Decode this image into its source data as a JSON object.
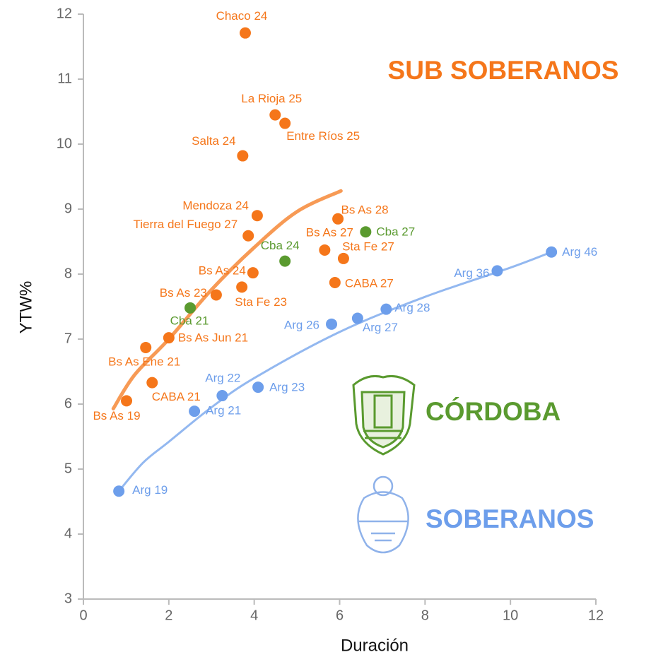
{
  "chart_data": {
    "type": "scatter",
    "xlabel": "Duración",
    "ylabel": "YTW%",
    "xlim": [
      0,
      12
    ],
    "ylim": [
      3,
      12
    ],
    "xticks": [
      0,
      2,
      4,
      6,
      8,
      10,
      12
    ],
    "yticks": [
      3,
      4,
      5,
      6,
      7,
      8,
      9,
      10,
      11,
      12
    ],
    "grid": false,
    "series": [
      {
        "name": "SUB SOBERANOS",
        "color": "#f5761a",
        "labels": [
          "Chaco 24",
          "La Rioja 25",
          "Entre Ríos 25",
          "Salta 24",
          "Mendoza 24",
          "Tierra del Fuego 27",
          "Bs As 28",
          "Bs As 27",
          "Sta Fe 27",
          "Bs As 24",
          "Bs As 23",
          "Sta Fe 23",
          "CABA 27",
          "Bs As Jun 21",
          "Bs As Ene 21",
          "CABA 21",
          "Bs As 19"
        ],
        "x": [
          3.79,
          4.49,
          4.72,
          3.73,
          4.07,
          3.86,
          5.96,
          5.65,
          6.09,
          3.97,
          3.11,
          3.71,
          5.89,
          2.0,
          1.46,
          1.61,
          1.01
        ],
        "values": [
          11.71,
          10.45,
          10.32,
          9.82,
          8.9,
          8.59,
          8.85,
          8.37,
          8.24,
          8.02,
          7.68,
          7.8,
          7.87,
          7.02,
          6.87,
          6.33,
          6.05
        ]
      },
      {
        "name": "CÓRDOBA",
        "color": "#5a9a2f",
        "labels": [
          "Cba 27",
          "Cba 24",
          "Cba 21"
        ],
        "x": [
          6.61,
          4.72,
          2.5
        ],
        "values": [
          8.65,
          8.2,
          7.48
        ]
      },
      {
        "name": "SOBERANOS",
        "color": "#6d9eeb",
        "labels": [
          "Arg 46",
          "Arg 36",
          "Arg 28",
          "Arg 27",
          "Arg 26",
          "Arg 23",
          "Arg 22",
          "Arg 21",
          "Arg 19"
        ],
        "x": [
          10.96,
          9.69,
          7.09,
          6.42,
          5.81,
          4.09,
          3.25,
          2.6,
          0.83
        ],
        "values": [
          8.34,
          8.05,
          7.46,
          7.32,
          7.23,
          6.26,
          6.13,
          5.89,
          4.66
        ]
      }
    ],
    "trendlines": [
      {
        "color": "#f79a55",
        "x": [
          0.7,
          1.2,
          2,
          3,
          4,
          5,
          6.03
        ],
        "values": [
          5.93,
          6.45,
          7.0,
          7.76,
          8.41,
          8.96,
          9.28
        ]
      },
      {
        "color": "#93b8f0",
        "x": [
          0.83,
          1.4,
          2,
          3,
          4,
          6,
          8,
          10,
          10.96
        ],
        "values": [
          4.66,
          5.1,
          5.42,
          5.95,
          6.4,
          7.11,
          7.65,
          8.1,
          8.34
        ]
      }
    ]
  }
}
